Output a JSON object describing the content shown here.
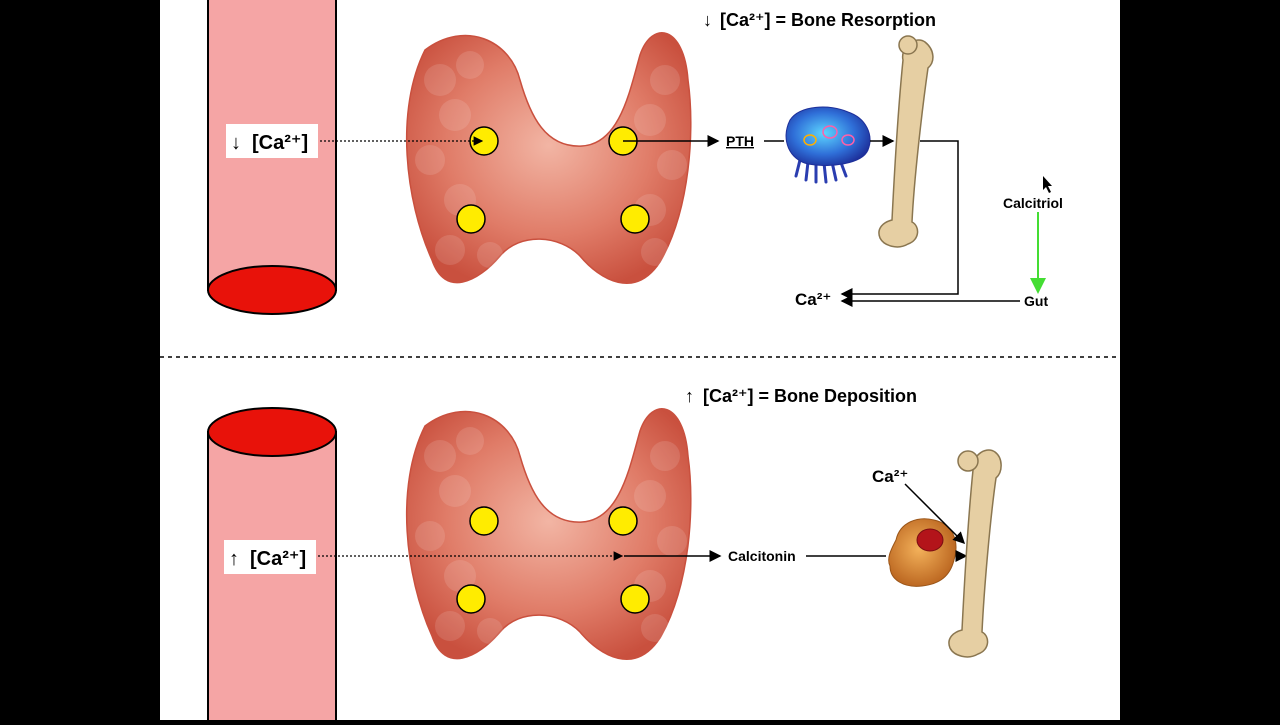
{
  "top_panel": {
    "title_arrow": "↓",
    "title": "[Ca²⁺] = Bone Resorption",
    "vessel_label_arrow": "↓",
    "vessel_label": "[Ca²⁺]",
    "hormone": "PTH",
    "vitamin": "Calcitriol",
    "organ": "Gut",
    "ion": "Ca²⁺"
  },
  "bottom_panel": {
    "title_arrow": "↑",
    "title": "[Ca²⁺] = Bone Deposition",
    "vessel_label_arrow": "↑",
    "vessel_label": "[Ca²⁺]",
    "hormone": "Calcitonin",
    "ion": "Ca²⁺"
  },
  "colors": {
    "frame": "#000000",
    "background": "#ffffff",
    "vessel_wall": "#f5a5a5",
    "vessel_lumen": "#e8120a",
    "thyroid": "#d9604f",
    "parathyroid": "#ffec00",
    "bone": "#e6cfa3",
    "osteoclast": "#3a5ccc",
    "osteoblast": "#d8842e",
    "calcitriol_arrow": "#44dd33"
  }
}
